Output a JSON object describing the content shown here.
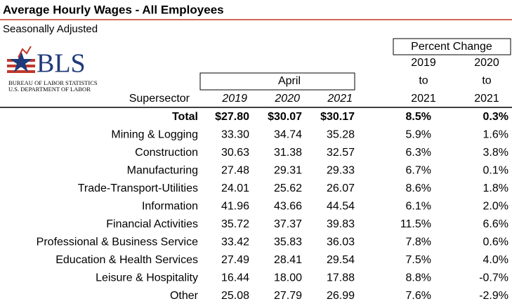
{
  "header": {
    "title": "Average Hourly Wages - All Employees",
    "subtitle": "Seasonally Adjusted"
  },
  "logo": {
    "name": "BLS",
    "line1": "BUREAU OF LABOR STATISTICS",
    "line2": "U.S. DEPARTMENT OF LABOR"
  },
  "table": {
    "group_headers": {
      "april": "April",
      "percent_change": "Percent Change"
    },
    "columns": [
      "Supersector",
      "2019",
      "2020",
      "2021"
    ],
    "percent_columns": [
      [
        "2019",
        "to",
        "2021"
      ],
      [
        "2020",
        "to",
        "2021"
      ]
    ],
    "rows": [
      [
        "Total",
        "$27.80",
        "$30.07",
        "$30.17",
        "8.5%",
        "0.3%"
      ],
      [
        "Mining & Logging",
        "33.30",
        "34.74",
        "35.28",
        "5.9%",
        "1.6%"
      ],
      [
        "Construction",
        "30.63",
        "31.38",
        "32.57",
        "6.3%",
        "3.8%"
      ],
      [
        "Manufacturing",
        "27.48",
        "29.31",
        "29.33",
        "6.7%",
        "0.1%"
      ],
      [
        "Trade-Transport-Utilities",
        "24.01",
        "25.62",
        "26.07",
        "8.6%",
        "1.8%"
      ],
      [
        "Information",
        "41.96",
        "43.66",
        "44.54",
        "6.1%",
        "2.0%"
      ],
      [
        "Financial Activities",
        "35.72",
        "37.37",
        "39.83",
        "11.5%",
        "6.6%"
      ],
      [
        "Professional & Business Service",
        "33.42",
        "35.83",
        "36.03",
        "7.8%",
        "0.6%"
      ],
      [
        "Education & Health Services",
        "27.49",
        "28.41",
        "29.54",
        "7.5%",
        "4.0%"
      ],
      [
        "Leisure & Hospitality",
        "16.44",
        "18.00",
        "17.88",
        "8.8%",
        "-0.7%"
      ],
      [
        "Other",
        "25.08",
        "27.79",
        "26.99",
        "7.6%",
        "-2.9%"
      ]
    ]
  }
}
